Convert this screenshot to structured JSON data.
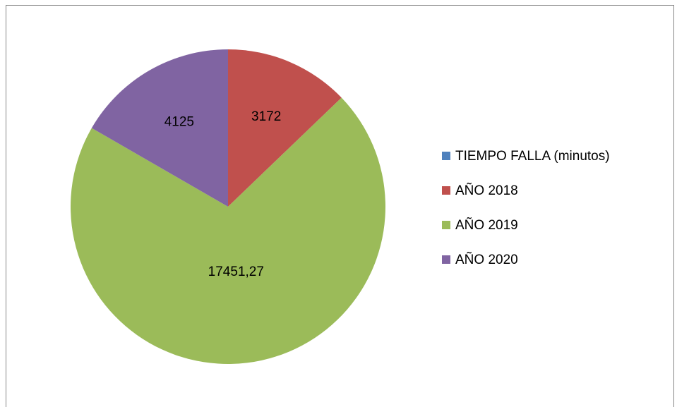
{
  "chart_data": {
    "type": "pie",
    "categories": [
      "TIEMPO FALLA (minutos)",
      "AÑO 2018",
      "AÑO 2019",
      "AÑO 2020"
    ],
    "values": [
      null,
      3172,
      17451.27,
      4125
    ],
    "value_labels": [
      null,
      "3172",
      "17451,27",
      "4125"
    ],
    "colors": [
      "#4f81bd",
      "#c0504d",
      "#9bbb59",
      "#8064a2"
    ],
    "legend": "right"
  }
}
